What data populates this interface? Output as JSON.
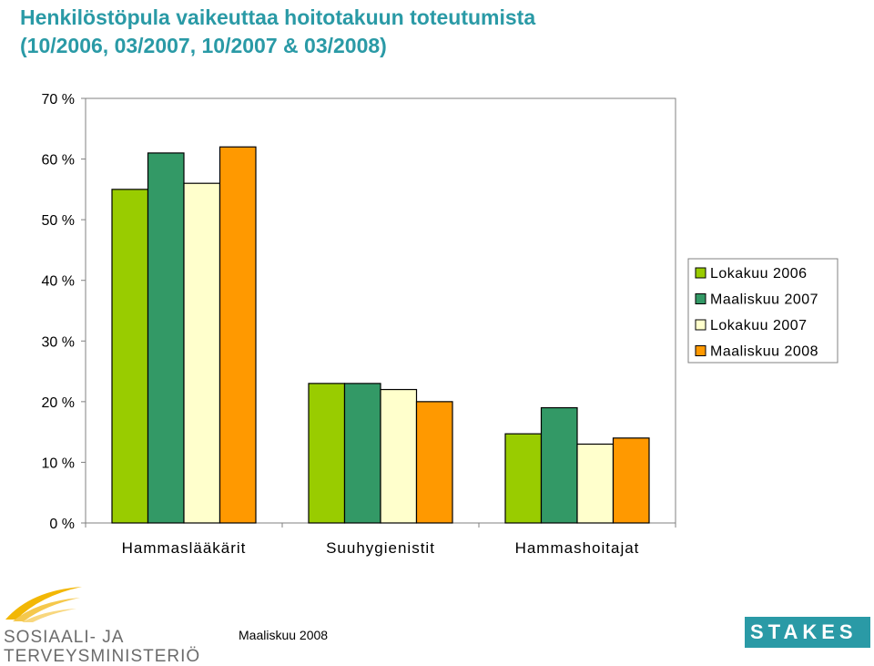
{
  "title": {
    "line1": "Henkilöstöpula vaikeuttaa hoitotakuun toteutumista",
    "line2": "(10/2006, 03/2007, 10/2007 & 03/2008)"
  },
  "colors": {
    "title": "#2a9aa6",
    "logo_brand": "#2a9aa6"
  },
  "chart_data": {
    "type": "bar",
    "categories": [
      "Hammaslääkärit",
      "Suuhygienistit",
      "Hammashoitajat"
    ],
    "series": [
      {
        "name": "Lokakuu 2006",
        "color": "#99cc00",
        "values": [
          55,
          23,
          14.7
        ]
      },
      {
        "name": "Maaliskuu 2007",
        "color": "#339966",
        "values": [
          61,
          23,
          19
        ]
      },
      {
        "name": "Lokakuu 2007",
        "color": "#ffffcc",
        "values": [
          56,
          22,
          13
        ]
      },
      {
        "name": "Maaliskuu 2008",
        "color": "#ff9900",
        "values": [
          62,
          20,
          14
        ]
      }
    ],
    "ylim": [
      0,
      70
    ],
    "yticks": [
      "0 %",
      "10 %",
      "20 %",
      "30 %",
      "40 %",
      "50 %",
      "60 %",
      "70 %"
    ],
    "grid": false,
    "legend": "right",
    "xlabel": "",
    "ylabel": ""
  },
  "footer": {
    "date": "Maaliskuu 2008",
    "logo_left_line1": "SOSIAALI- JA",
    "logo_left_line2": "TERVEYSMINISTERIÖ",
    "logo_right": "STAKES"
  }
}
